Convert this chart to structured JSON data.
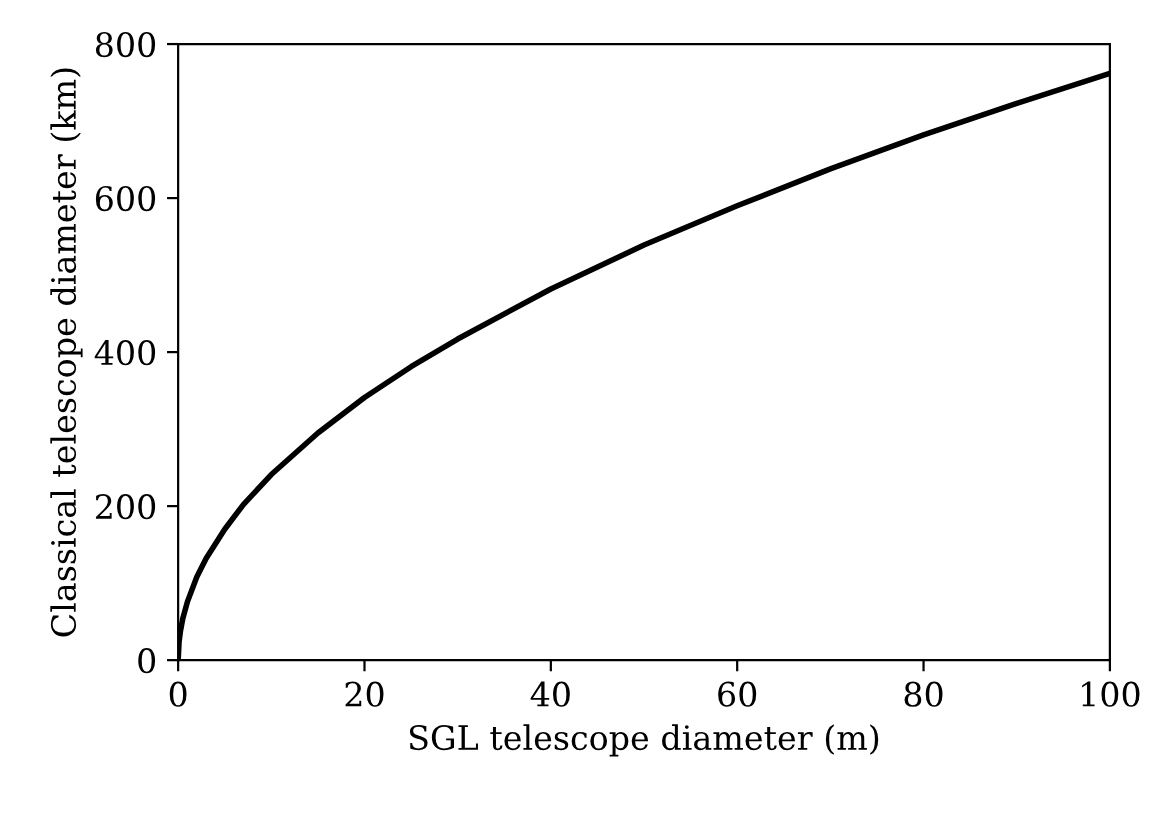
{
  "chart_data": {
    "type": "line",
    "xlabel": "SGL telescope diameter (m)",
    "ylabel": "Classical telescope diameter (km)",
    "x": [
      0,
      0.1,
      0.25,
      0.5,
      1,
      2,
      3,
      5,
      7,
      10,
      15,
      20,
      25,
      30,
      40,
      50,
      60,
      70,
      80,
      90,
      100
    ],
    "series": [
      {
        "color": "#000000",
        "values": [
          0,
          24,
          38,
          54,
          76,
          108,
          132,
          170,
          202,
          241,
          295,
          341,
          381,
          417,
          482,
          539,
          590,
          638,
          682,
          723,
          762
        ]
      }
    ],
    "xlim": [
      0,
      100
    ],
    "xticks": [
      0,
      20,
      40,
      60,
      80,
      100
    ],
    "ylim": [
      0,
      800
    ],
    "yticks": [
      0,
      200,
      400,
      600,
      800
    ],
    "grid": false,
    "marker": "none",
    "line_style": "solid"
  }
}
